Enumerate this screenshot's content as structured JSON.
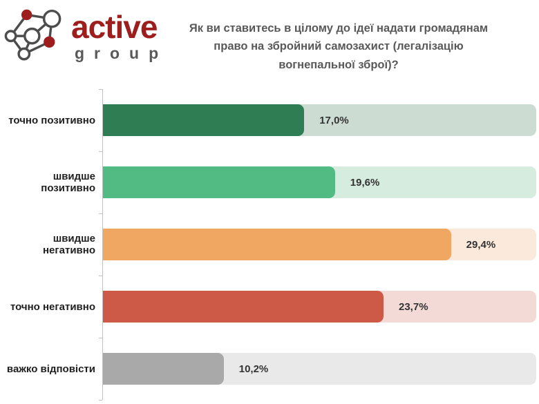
{
  "logo": {
    "brand": "active",
    "sub": "group",
    "brand_color": "#9e1d1d",
    "sub_color": "#595959"
  },
  "title": {
    "lines": [
      "Як ви ставитесь в цілому до ідеї надати громадянам",
      "право на збройний самозахист (легалізацію",
      "вогнепальної зброї)?"
    ]
  },
  "chart_data": {
    "type": "bar",
    "orientation": "horizontal",
    "title": "Як ви ставитесь в цілому до ідеї надати громадянам право на збройний самозахист (легалізацію вогнепальної зброї)?",
    "categories": [
      "точно позитивно",
      "швидше позитивно",
      "швидше негативно",
      "точно негативно",
      "важко відповісти"
    ],
    "values": [
      17.0,
      19.6,
      29.4,
      23.7,
      10.2
    ],
    "value_labels": [
      "17,0%",
      "19,6%",
      "29,4%",
      "23,7%",
      "10,2%"
    ],
    "unit": "%",
    "bar_colors": [
      "#2e7d53",
      "#52bb84",
      "#f0a761",
      "#cd5a47",
      "#a9a9a9"
    ],
    "track_colors": [
      "#cddcd3",
      "#d6ecdf",
      "#fbeadb",
      "#f3dad6",
      "#e9e9e9"
    ],
    "xlim": [
      0,
      36.6
    ],
    "grid": false,
    "legend": false
  }
}
